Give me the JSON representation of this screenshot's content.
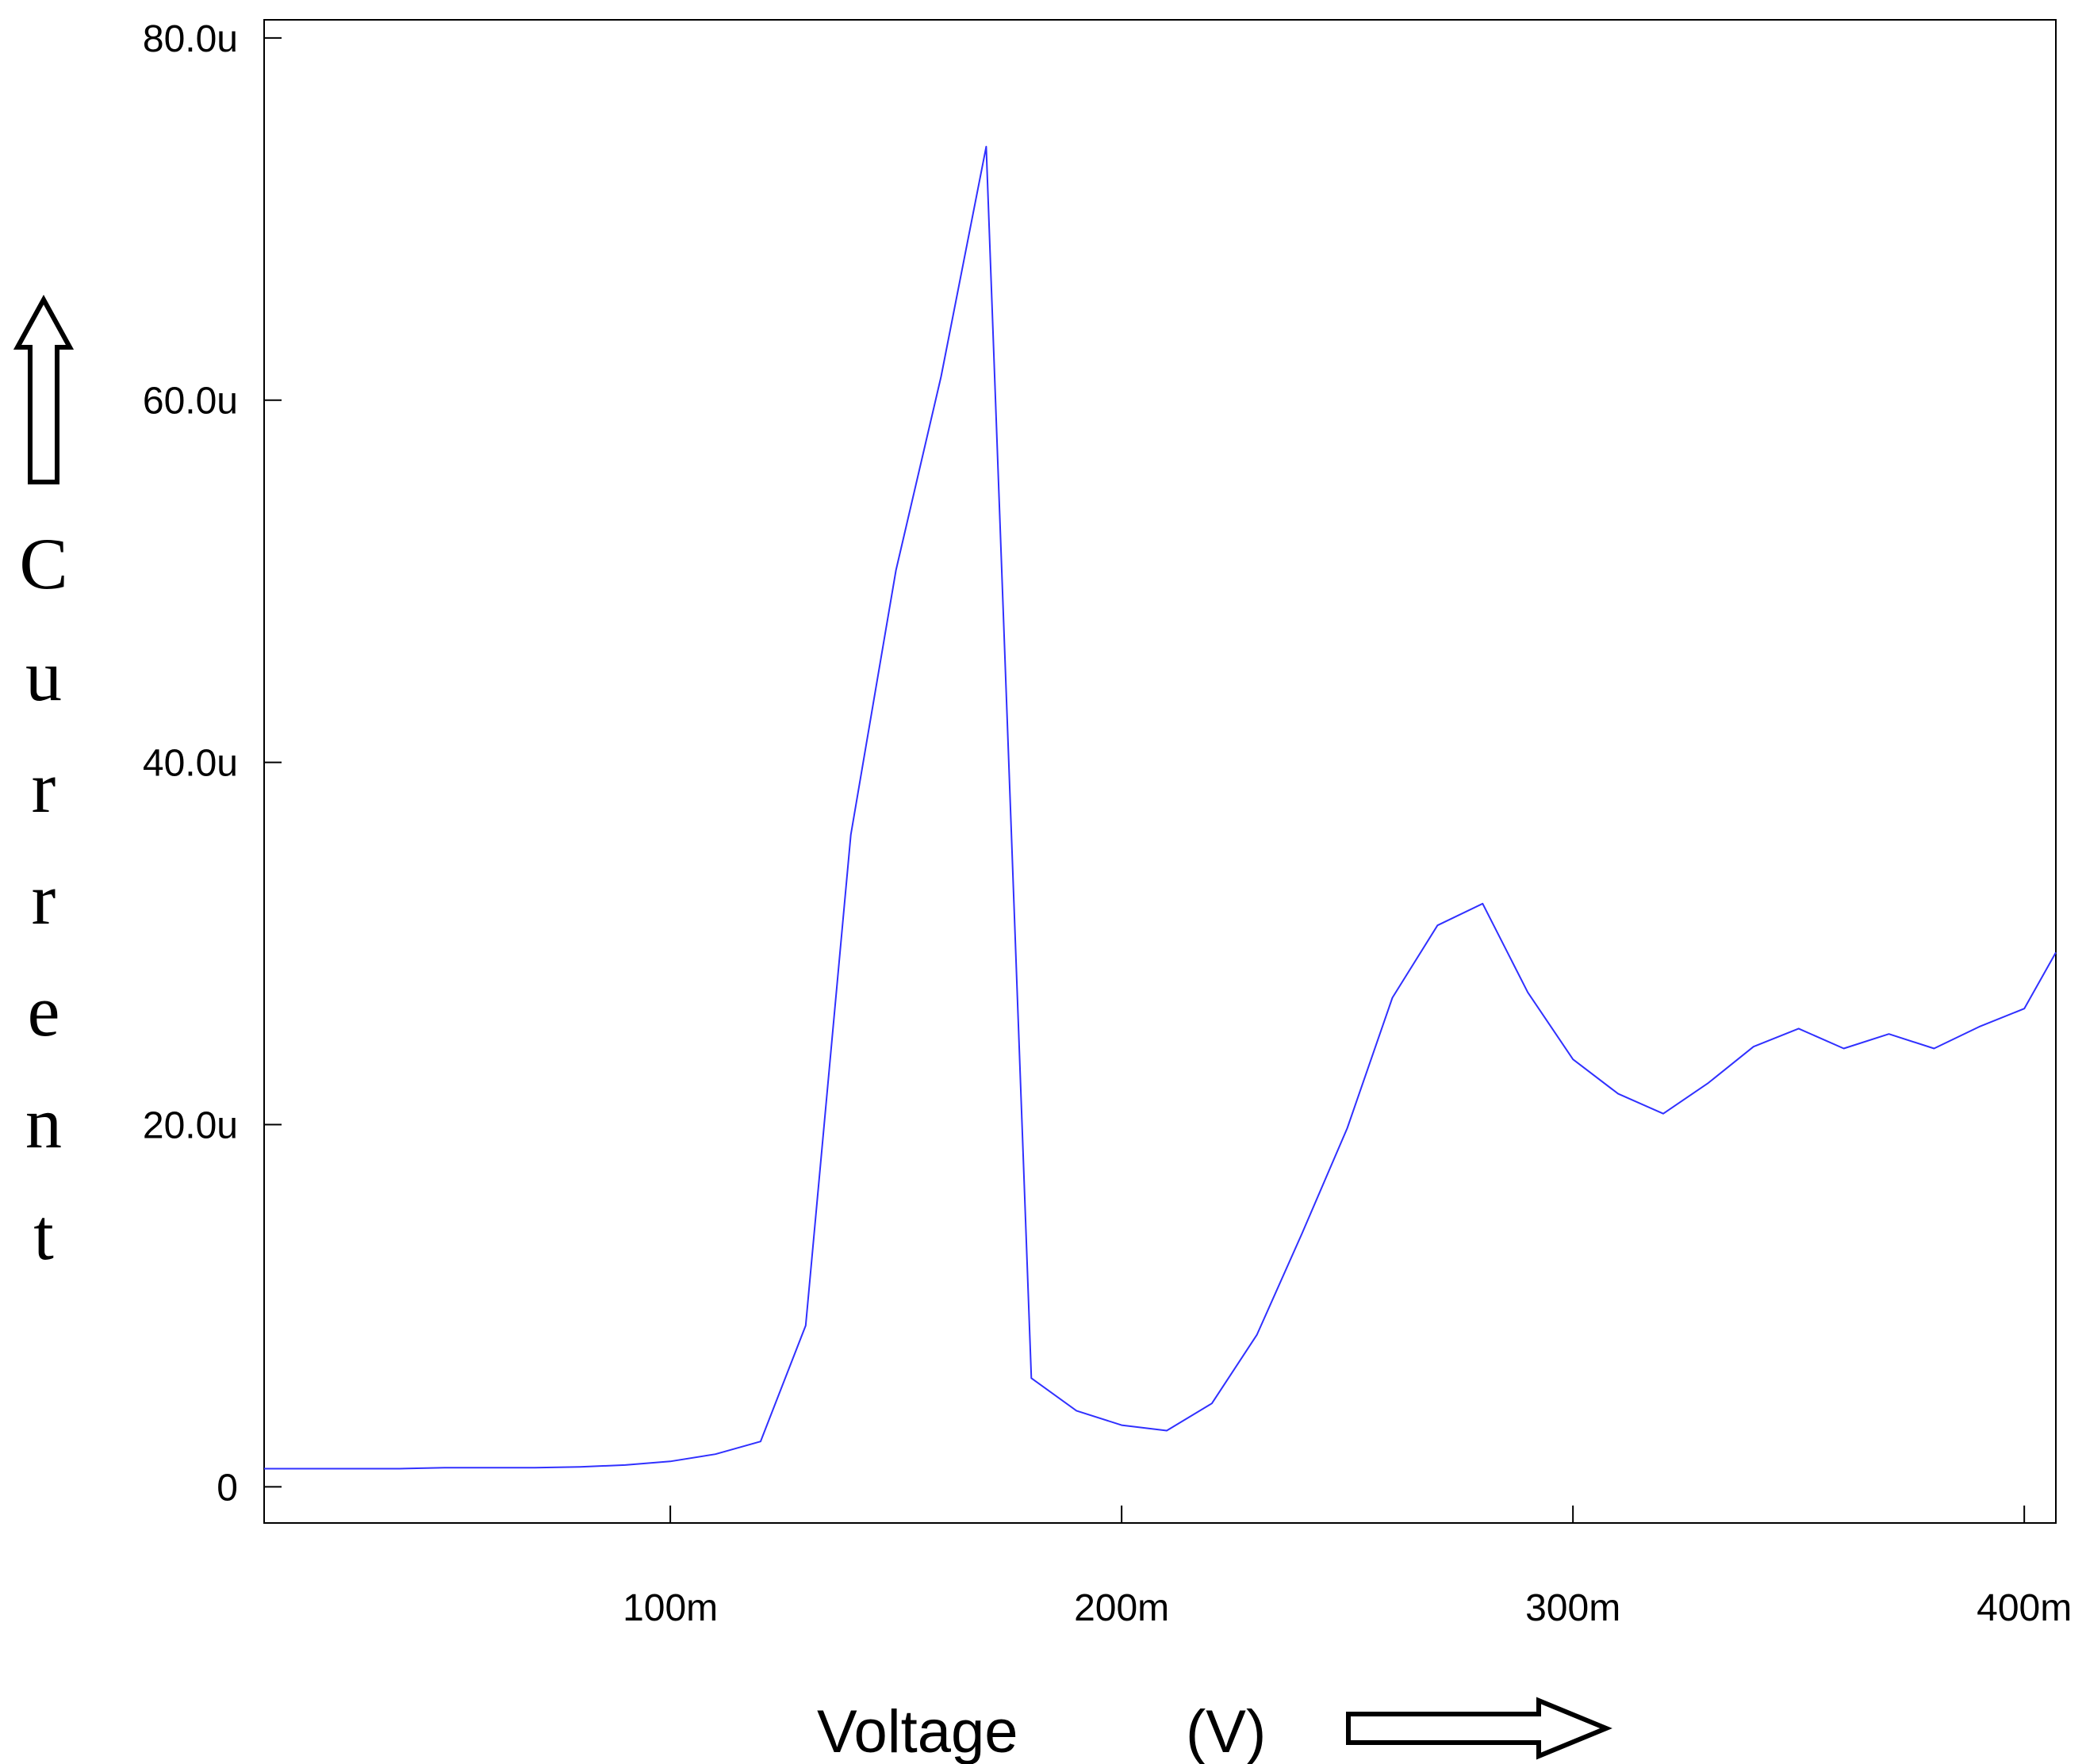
{
  "chart_data": {
    "type": "line",
    "title": "",
    "xlabel": "Voltage (V)",
    "xlabel_parts": [
      "Voltage",
      "(V)"
    ],
    "ylabel": "Current",
    "xlim": [
      0.01,
      0.407
    ],
    "ylim": [
      -2.0,
      81.0
    ],
    "grid": false,
    "x_ticks": [
      {
        "value": 0.1,
        "label": "100m"
      },
      {
        "value": 0.2,
        "label": "200m"
      },
      {
        "value": 0.3,
        "label": "300m"
      },
      {
        "value": 0.4,
        "label": "400m"
      }
    ],
    "y_ticks": [
      {
        "value": 0,
        "label": "0"
      },
      {
        "value": 20,
        "label": "20.0u"
      },
      {
        "value": 40,
        "label": "40.0u"
      },
      {
        "value": 60,
        "label": "60.0u"
      },
      {
        "value": 80,
        "label": "80.0u"
      }
    ],
    "series": [
      {
        "color": "#3030ff",
        "x": [
          0.01,
          0.02,
          0.03,
          0.04,
          0.05,
          0.06,
          0.07,
          0.08,
          0.09,
          0.1,
          0.11,
          0.12,
          0.13,
          0.14,
          0.15,
          0.16,
          0.17,
          0.18,
          0.19,
          0.2,
          0.21,
          0.22,
          0.23,
          0.24,
          0.25,
          0.26,
          0.27,
          0.28,
          0.29,
          0.3,
          0.31,
          0.32,
          0.33,
          0.34,
          0.35,
          0.36,
          0.37,
          0.38,
          0.39,
          0.4,
          0.407
        ],
        "y": [
          1.0,
          1.0,
          1.0,
          1.0,
          1.05,
          1.05,
          1.05,
          1.1,
          1.2,
          1.4,
          1.8,
          2.5,
          8.9,
          36.0,
          50.6,
          61.3,
          74.0,
          6.0,
          4.2,
          3.4,
          3.1,
          4.6,
          8.4,
          14.0,
          19.8,
          27.0,
          31.0,
          32.2,
          27.3,
          23.6,
          21.7,
          20.6,
          22.3,
          24.3,
          25.3,
          24.2,
          25.0,
          24.2,
          25.4,
          26.4,
          29.5
        ]
      }
    ]
  }
}
